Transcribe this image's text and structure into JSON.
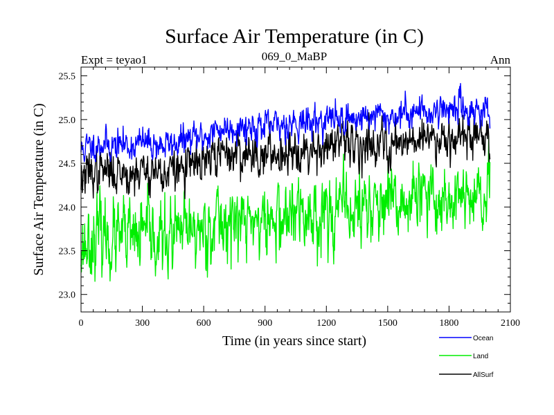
{
  "chart_data": {
    "type": "line",
    "title": "Surface Air Temperature (in C)",
    "subtitle_left": "Expt = teyao1",
    "subtitle_center": "069_0_MaBP",
    "subtitle_right": "Ann",
    "xlabel": "Time (in years since start)",
    "ylabel": "Surface Air Temperature (in C)",
    "xlim": [
      0,
      2100
    ],
    "ylim": [
      22.8,
      25.6
    ],
    "xticks": [
      0,
      300,
      600,
      900,
      1200,
      1500,
      1800,
      2100
    ],
    "yticks": [
      23.0,
      23.5,
      24.0,
      24.5,
      25.0,
      25.5
    ],
    "xtick_labels": [
      "0",
      "300",
      "600",
      "900",
      "1200",
      "1500",
      "1800",
      "2100"
    ],
    "ytick_labels": [
      "23.0",
      "23.5",
      "24.0",
      "24.5",
      "25.0",
      "25.5"
    ],
    "legend_position": "bottom-right, below plot",
    "x": [
      0,
      50,
      100,
      150,
      200,
      250,
      300,
      350,
      400,
      450,
      500,
      550,
      600,
      650,
      700,
      750,
      800,
      850,
      900,
      950,
      1000,
      1050,
      1100,
      1150,
      1200,
      1250,
      1300,
      1350,
      1400,
      1450,
      1500,
      1550,
      1600,
      1650,
      1700,
      1750,
      1800,
      1850,
      1900,
      1950,
      2000
    ],
    "series": [
      {
        "name": "Ocean",
        "color": "#0000ff",
        "values": [
          24.65,
          24.7,
          24.73,
          24.7,
          24.72,
          24.7,
          24.74,
          24.72,
          24.7,
          24.72,
          24.76,
          24.78,
          24.8,
          24.86,
          24.9,
          24.92,
          24.92,
          24.93,
          24.9,
          24.92,
          24.95,
          24.98,
          24.96,
          24.98,
          25.0,
          25.02,
          25.0,
          25.02,
          25.03,
          25.05,
          25.02,
          25.05,
          25.08,
          25.1,
          25.08,
          25.12,
          25.12,
          25.15,
          25.1,
          25.12,
          25.08
        ]
      },
      {
        "name": "Land",
        "color": "#00ee00",
        "values": [
          23.55,
          23.62,
          23.7,
          23.62,
          23.64,
          23.62,
          23.68,
          23.66,
          23.6,
          23.65,
          23.7,
          23.72,
          23.75,
          23.82,
          23.82,
          23.85,
          23.82,
          23.86,
          23.8,
          23.84,
          23.88,
          23.92,
          23.88,
          23.92,
          23.95,
          23.98,
          23.95,
          23.98,
          24.0,
          24.02,
          23.95,
          24.02,
          24.05,
          24.1,
          24.05,
          24.1,
          24.1,
          24.12,
          24.05,
          24.08,
          24.05
        ]
      },
      {
        "name": "AllSurf",
        "color": "#000000",
        "values": [
          24.32,
          24.4,
          24.42,
          24.4,
          24.41,
          24.38,
          24.43,
          24.42,
          24.38,
          24.41,
          24.45,
          24.47,
          24.5,
          24.58,
          24.6,
          24.62,
          24.6,
          24.62,
          24.58,
          24.61,
          24.65,
          24.68,
          24.65,
          24.68,
          24.7,
          24.72,
          24.7,
          24.72,
          24.73,
          24.75,
          24.7,
          24.75,
          24.78,
          24.81,
          24.78,
          24.82,
          24.82,
          24.85,
          24.78,
          24.82,
          24.78
        ]
      }
    ]
  }
}
